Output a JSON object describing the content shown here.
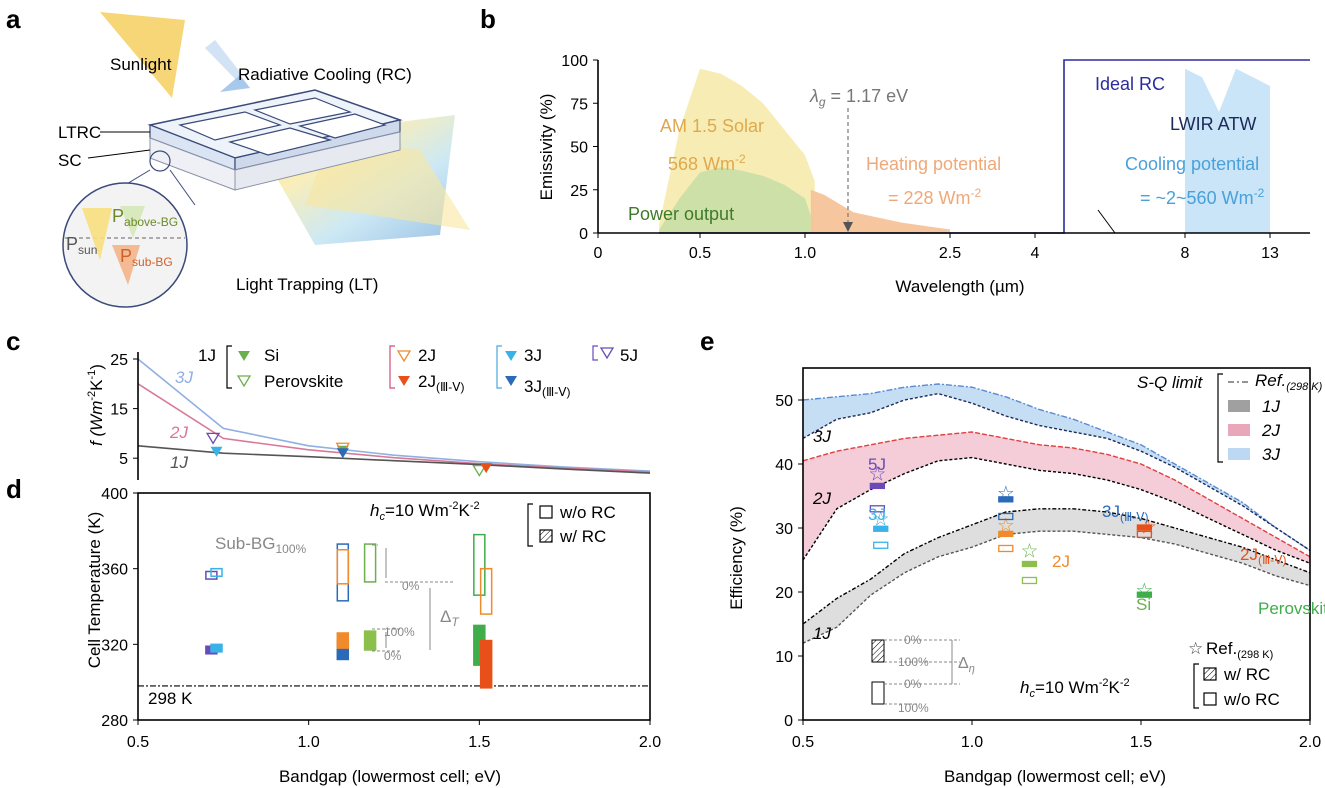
{
  "panels": {
    "a": {
      "label": "a",
      "sunlight": "Sunlight",
      "rc": "Radiative Cooling (RC)",
      "ltrc": "LTRC",
      "sc": "SC",
      "lt": "Light Trapping (LT)",
      "p_sun": "P",
      "p_sun_sub": "sun",
      "p_above": "P",
      "p_above_sub": "above-BG",
      "p_sub": "P",
      "p_sub_sub": "sub-BG"
    },
    "b": {
      "label": "b",
      "ylabel": "Emissivity (%)",
      "xlabel": "Wavelength (µm)",
      "yticks": [
        "0",
        "25",
        "50",
        "75",
        "100"
      ],
      "xticks": [
        "0",
        "0.5",
        "1.0",
        "2.5",
        "4",
        "8",
        "13"
      ],
      "lambda_g": "λ",
      "lambda_g_sub": "g",
      "lambda_g_val": " = 1.17 eV",
      "solar1": "AM 1.5 Solar",
      "solar2": "568 Wm",
      "solar2_sup": "-2",
      "power": "Power output",
      "heat1": "Heating potential",
      "heat2": "= 228 Wm",
      "heat2_sup": "-2",
      "ideal": "Ideal RC",
      "lwir": "LWIR ATW",
      "cool1": "Cooling potential",
      "cool2": "= ~2~560 Wm",
      "cool2_sup": "-2",
      "colors": {
        "solar": "#f7ecb0",
        "power": "#c9dfa8",
        "heat": "#f6c49a",
        "cool": "#bfe0f6",
        "ideal": "#2c2c9c"
      }
    },
    "c": {
      "label": "c",
      "ylabel": "f (Wm",
      "ylabel_sup": "-2",
      "ylabel_end": "K",
      "ylabel_sup2": "-1",
      "ylabel_close": ")",
      "yticks": [
        "5",
        "15",
        "25"
      ],
      "curve_labels": [
        "3J",
        "2J",
        "1J"
      ],
      "legend": {
        "j1": "1J",
        "si": "Si",
        "perovskite": "Perovskite",
        "j2": "2J",
        "j2iii": "2J",
        "j2iii_sub": "(Ⅲ-Ⅴ)",
        "j3": "3J",
        "j3iii": "3J",
        "j3iii_sub": "(Ⅲ-Ⅴ)",
        "j5": "5J"
      }
    },
    "d": {
      "label": "d",
      "ylabel": "Cell Temperature (K)",
      "xlabel": "Bandgap (lowermost cell; eV)",
      "yticks": [
        "280",
        "320",
        "360",
        "400"
      ],
      "xticks": [
        "0.5",
        "1.0",
        "1.5",
        "2.0"
      ],
      "hc": "h",
      "hc_sub": "c",
      "hc_val": "=10 Wm",
      "hc_sup": "-2",
      "hc_end": "K",
      "hc_sup2": "-2",
      "wo_rc": "w/o RC",
      "w_rc": "w/   RC",
      "subbg": "Sub-BG",
      "subbg_sub": "100%",
      "pct0a": "0%",
      "pct100": "100%",
      "pct0b": "0%",
      "delta": "Δ",
      "delta_sub": "T",
      "ref": "298 K"
    },
    "e": {
      "label": "e",
      "ylabel": "Efficiency (%)",
      "xlabel": "Bandgap (lowermost cell; eV)",
      "yticks": [
        "0",
        "10",
        "20",
        "30",
        "40",
        "50"
      ],
      "xticks": [
        "0.5",
        "1.0",
        "1.5",
        "2.0"
      ],
      "sq": "S-Q limit",
      "ref": "Ref.",
      "ref_sub": "(298 K)",
      "l1": "1J",
      "l2": "2J",
      "l3": "3J",
      "c3": "3J",
      "c2": "2J",
      "c1": "1J",
      "m5j": "5J",
      "m3j": "3J",
      "m3jiii": "3J",
      "m3jiii_sub": "(Ⅲ-Ⅴ)",
      "m2j": "2J",
      "msi": "Si",
      "m2jiii": "2J",
      "m2jiii_sub": "(Ⅲ-Ⅴ)",
      "mper": "Perovskite",
      "star_ref": "Ref.",
      "star_ref_sub": "(298 K)",
      "w_rc": "w/   RC",
      "wo_rc": "w/o RC",
      "hc": "h",
      "hc_sub": "c",
      "hc_val": "=10 Wm",
      "hc_sup": "-2",
      "hc_end": "K",
      "hc_sup2": "-2",
      "in0a": "0%",
      "in100a": "100%",
      "in0b": "0%",
      "in100b": "100%",
      "delta": "Δ",
      "delta_sub": "η"
    }
  },
  "chart_data": [
    {
      "type": "area",
      "panel": "b",
      "title": "",
      "xlabel": "Wavelength (µm)",
      "ylabel": "Emissivity (%)",
      "ylim": [
        0,
        100
      ],
      "series": [
        {
          "name": "AM 1.5 Solar",
          "x": [
            0.3,
            0.4,
            0.5,
            0.6,
            0.7,
            0.8,
            0.9,
            1.0,
            1.1
          ],
          "values": [
            5,
            60,
            95,
            92,
            85,
            75,
            60,
            45,
            30
          ]
        },
        {
          "name": "Power output",
          "x": [
            0.3,
            0.4,
            0.5,
            0.6,
            0.7,
            0.8,
            0.9,
            1.0,
            1.06
          ],
          "values": [
            2,
            20,
            35,
            38,
            36,
            33,
            28,
            20,
            10
          ]
        },
        {
          "name": "Heating potential",
          "x": [
            1.06,
            1.2,
            1.5,
            2.0,
            2.5
          ],
          "values": [
            25,
            22,
            12,
            6,
            2
          ]
        },
        {
          "name": "Ideal RC",
          "x": [
            0.3,
            4.5,
            4.5,
            16
          ],
          "values": [
            0,
            0,
            100,
            100
          ]
        },
        {
          "name": "Cooling potential",
          "x": [
            8,
            9,
            10,
            11,
            12,
            13
          ],
          "values": [
            95,
            90,
            70,
            95,
            90,
            85
          ]
        }
      ]
    },
    {
      "type": "line",
      "panel": "c",
      "ylabel": "f (Wm-2K-1)",
      "ylim": [
        0,
        25
      ],
      "x": [
        0.5,
        0.75,
        1.0,
        1.25,
        1.5,
        1.75,
        2.0
      ],
      "series": [
        {
          "name": "3J",
          "values": [
            25,
            11,
            7.5,
            5.6,
            4.3,
            3.2,
            2.4
          ]
        },
        {
          "name": "2J",
          "values": [
            20,
            9.0,
            6.7,
            5.1,
            3.9,
            3.0,
            2.2
          ]
        },
        {
          "name": "1J",
          "values": [
            7.5,
            6.0,
            5.3,
            4.5,
            3.7,
            2.8,
            2.0
          ]
        }
      ],
      "markers": [
        {
          "name": "Si",
          "x": 1.1,
          "y": 6.5
        },
        {
          "name": "Perovskite",
          "x": 1.5,
          "y": 2.5
        },
        {
          "name": "2J",
          "x": 1.1,
          "y": 7.0
        },
        {
          "name": "2J (III-V)",
          "x": 1.52,
          "y": 3.0
        },
        {
          "name": "3J",
          "x": 0.73,
          "y": 6.3
        },
        {
          "name": "3J (III-V)",
          "x": 1.1,
          "y": 6.0
        },
        {
          "name": "5J",
          "x": 0.72,
          "y": 9.0
        }
      ]
    },
    {
      "type": "bar",
      "panel": "d",
      "xlabel": "Bandgap (lowermost cell; eV)",
      "ylabel": "Cell Temperature (K)",
      "xlim": [
        0.5,
        2.0
      ],
      "ylim": [
        280,
        400
      ],
      "reference": 298
    },
    {
      "type": "area",
      "panel": "e",
      "xlabel": "Bandgap (lowermost cell; eV)",
      "ylabel": "Efficiency (%)",
      "xlim": [
        0.5,
        2.0
      ],
      "ylim": [
        0,
        55
      ],
      "x": [
        0.5,
        0.6,
        0.7,
        0.8,
        0.9,
        1.0,
        1.1,
        1.2,
        1.3,
        1.4,
        1.5,
        1.6,
        1.7,
        1.8,
        1.9,
        2.0
      ],
      "series": [
        {
          "name": "3J upper",
          "values": [
            50,
            50.5,
            51,
            52,
            52.5,
            52,
            50.5,
            48.5,
            47,
            45,
            43,
            40,
            37,
            34,
            30,
            26.5
          ]
        },
        {
          "name": "3J lower",
          "values": [
            44,
            47,
            48,
            50,
            51,
            49.5,
            47.5,
            46,
            45,
            44,
            42,
            39.5,
            36.5,
            33.5,
            30,
            26.5
          ]
        },
        {
          "name": "2J upper",
          "values": [
            40.5,
            42,
            43,
            44,
            44.5,
            45,
            44,
            43,
            42.5,
            41.5,
            40,
            37.5,
            34.5,
            31.5,
            28.5,
            25.5
          ]
        },
        {
          "name": "2J lower",
          "values": [
            25,
            33,
            36,
            38.5,
            40.5,
            41,
            40,
            39,
            38.5,
            37.5,
            36,
            34,
            31.5,
            29,
            26.5,
            24.5
          ]
        },
        {
          "name": "1J upper",
          "values": [
            15,
            19,
            22,
            26,
            28.5,
            30.5,
            32.5,
            33,
            33,
            32.5,
            31.5,
            30,
            28.5,
            27,
            25,
            23
          ]
        },
        {
          "name": "1J lower",
          "values": [
            12,
            14.5,
            19.5,
            23,
            25.5,
            27,
            29,
            29.5,
            29.5,
            29,
            28.5,
            27.5,
            26,
            24.5,
            22.5,
            21
          ]
        }
      ]
    }
  ]
}
